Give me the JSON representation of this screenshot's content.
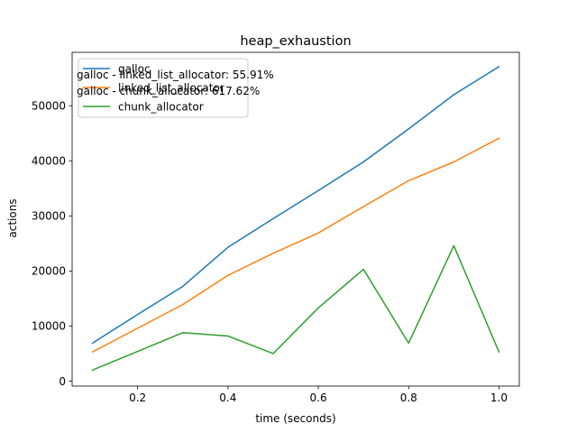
{
  "chart_data": {
    "type": "line",
    "title": "heap_exhaustion",
    "xlabel": "time (seconds)",
    "ylabel": "actions",
    "xlim": [
      0.055,
      1.045
    ],
    "ylim": [
      -900,
      59700
    ],
    "xticks": [
      0.2,
      0.4,
      0.6,
      0.8,
      1.0
    ],
    "xtick_labels": [
      "0.2",
      "0.4",
      "0.6",
      "0.8",
      "1.0"
    ],
    "yticks": [
      0,
      10000,
      20000,
      30000,
      40000,
      50000
    ],
    "ytick_labels": [
      "0",
      "10000",
      "20000",
      "30000",
      "40000",
      "50000"
    ],
    "grid": false,
    "legend_position": "top-left",
    "x": [
      0.1,
      0.2,
      0.3,
      0.4,
      0.5,
      0.6,
      0.7,
      0.8,
      0.9,
      1.0
    ],
    "series": [
      {
        "name": "galloc",
        "color": "#1f77b4",
        "values": [
          6900,
          12100,
          17200,
          24300,
          29500,
          34600,
          39800,
          45800,
          52000,
          57100
        ]
      },
      {
        "name": "linked_list_allocator",
        "color": "#ff7f0e",
        "values": [
          5300,
          9600,
          13900,
          19200,
          23200,
          26900,
          31700,
          36400,
          39800,
          44100
        ]
      },
      {
        "name": "chunk_allocator",
        "color": "#2ca02c",
        "values": [
          2000,
          5400,
          8800,
          8200,
          5000,
          13300,
          20300,
          6900,
          24600,
          5300
        ]
      }
    ],
    "annotations": [
      "galloc - linked_list_allocator: 55.91%",
      "galloc - chunk_allocator: 617.62%"
    ]
  }
}
